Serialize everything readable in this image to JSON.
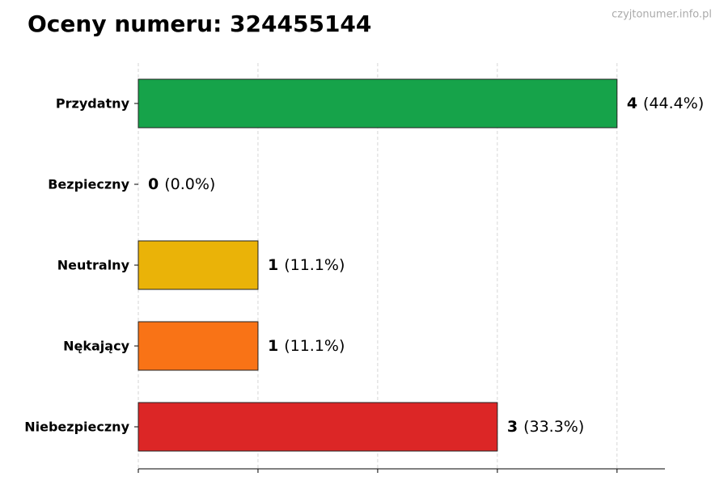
{
  "chart_data": {
    "type": "barh",
    "title": "Oceny numeru: 324455144",
    "watermark": "czyjtonumer.info.pl",
    "categories": [
      "Przydatny",
      "Bezpieczny",
      "Neutralny",
      "Nękający",
      "Niebezpieczny"
    ],
    "values": [
      4,
      0,
      1,
      1,
      3
    ],
    "percent_labels": [
      "(44.4%)",
      "(0.0%)",
      "(11.1%)",
      "(11.1%)",
      "(33.3%)"
    ],
    "colors": [
      "#16a34a",
      "#1f77b4",
      "#eab308",
      "#f97316",
      "#dc2626"
    ],
    "xlim": [
      0,
      4.4
    ],
    "xticks": [
      0,
      1,
      2,
      3,
      4
    ],
    "grid": true
  }
}
